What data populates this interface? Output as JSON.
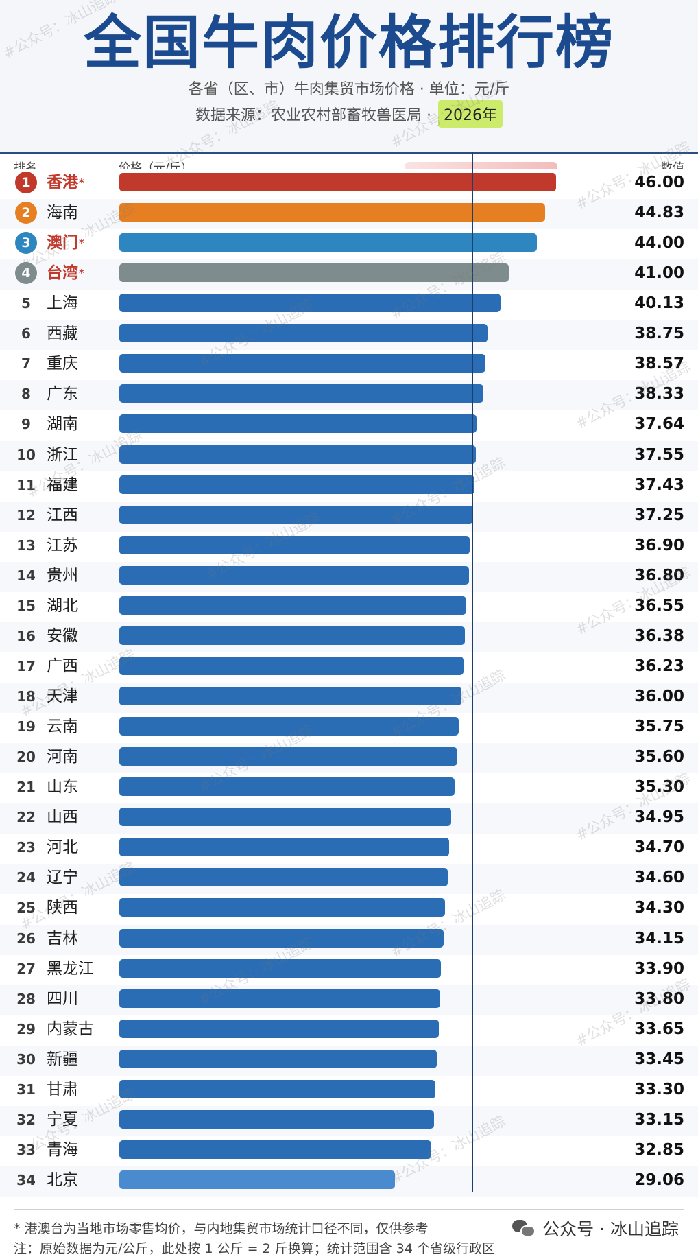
{
  "header": {
    "title": "全国牛肉价格排行榜",
    "subtitle": "各省（区、市）牛肉集贸市场价格 · 单位：元/斤",
    "source": "数据来源：农业农村部畜牧兽医局 ·",
    "year": "2026年"
  },
  "columns": {
    "rank": "排名",
    "price": "价格（元/斤）",
    "value": "数值"
  },
  "chart_data": {
    "type": "bar",
    "orientation": "horizontal",
    "title": "全国牛肉价格排行榜",
    "ylabel": "",
    "xlabel": "价格（元/斤）",
    "xlim": [
      0,
      46
    ],
    "categories": [
      "香港",
      "海南",
      "澳门",
      "台湾",
      "上海",
      "西藏",
      "重庆",
      "广东",
      "湖南",
      "浙江",
      "福建",
      "江西",
      "江苏",
      "贵州",
      "湖北",
      "安徽",
      "广西",
      "天津",
      "云南",
      "河南",
      "山东",
      "山西",
      "河北",
      "辽宁",
      "陕西",
      "吉林",
      "黑龙江",
      "四川",
      "内蒙古",
      "新疆",
      "甘肃",
      "宁夏",
      "青海",
      "北京"
    ],
    "values": [
      46.0,
      44.83,
      44.0,
      41.0,
      40.13,
      38.75,
      38.57,
      38.33,
      37.64,
      37.55,
      37.43,
      37.25,
      36.9,
      36.8,
      36.55,
      36.38,
      36.23,
      36.0,
      35.75,
      35.6,
      35.3,
      34.95,
      34.7,
      34.6,
      34.3,
      34.15,
      33.9,
      33.8,
      33.65,
      33.45,
      33.3,
      33.15,
      32.85,
      29.06
    ],
    "value_labels": [
      "46.00",
      "44.83",
      "44.00",
      "41.00",
      "40.13",
      "38.75",
      "38.57",
      "38.33",
      "37.64",
      "37.55",
      "37.43",
      "37.25",
      "36.90",
      "36.80",
      "36.55",
      "36.38",
      "36.23",
      "36.00",
      "35.75",
      "35.60",
      "35.30",
      "34.95",
      "34.70",
      "34.60",
      "34.30",
      "34.15",
      "33.90",
      "33.80",
      "33.65",
      "33.45",
      "33.30",
      "33.15",
      "32.85",
      "29.06"
    ],
    "ranks": [
      "1",
      "2",
      "3",
      "4",
      "5",
      "6",
      "7",
      "8",
      "9",
      "10",
      "11",
      "12",
      "13",
      "14",
      "15",
      "16",
      "17",
      "18",
      "19",
      "20",
      "21",
      "22",
      "23",
      "24",
      "25",
      "26",
      "27",
      "28",
      "29",
      "30",
      "31",
      "32",
      "33",
      "34"
    ],
    "starred": [
      true,
      false,
      true,
      true,
      false,
      false,
      false,
      false,
      false,
      false,
      false,
      false,
      false,
      false,
      false,
      false,
      false,
      false,
      false,
      false,
      false,
      false,
      false,
      false,
      false,
      false,
      false,
      false,
      false,
      false,
      false,
      false,
      false,
      false
    ],
    "colors": {
      "rank1": "#c0392b",
      "rank2": "#e67e22",
      "rank3": "#2e86c1",
      "rank4": "#7f8c8d",
      "default": "#2a6db5",
      "last": "#4a8bcf"
    },
    "grid": false
  },
  "footnotes": {
    "star_mark": "*",
    "note1": "* 港澳台为当地市场零售均价，与内地集贸市场统计口径不同，仅供参考",
    "note2": "注：原始数据为元/公斤，此处按 1 公斤 = 2 斤换算；统计范围含 34 个省级行政区"
  },
  "brand": {
    "label": "公众号 · 冰山追踪",
    "icon": "wechat-icon"
  },
  "watermark": "#公众号：冰山追踪"
}
